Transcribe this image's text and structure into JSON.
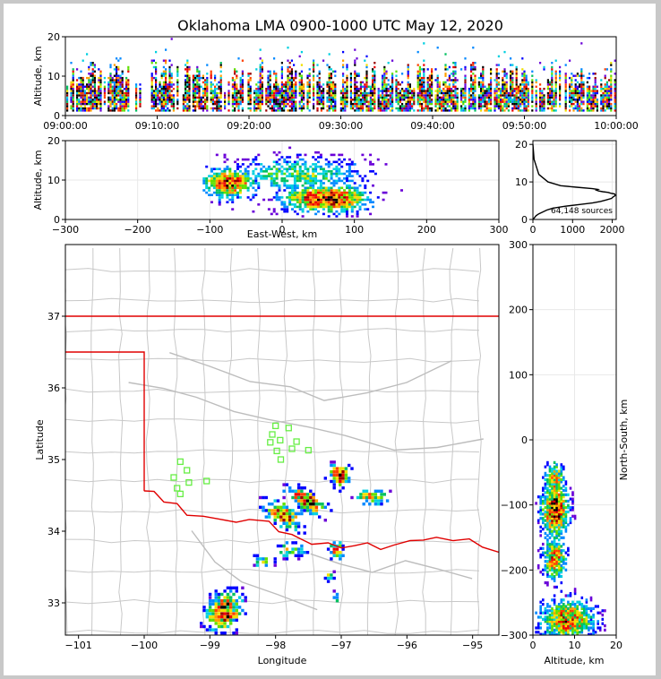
{
  "chart_data": [
    {
      "id": "time_height",
      "type": "heatmap",
      "title": "Oklahoma LMA 0900-1000 UTC May 12, 2020",
      "ylabel": "Altitude, km",
      "xlim": [
        "09:00:00",
        "10:00:00"
      ],
      "ylim": [
        0,
        20
      ],
      "xticks": [
        "09:00:00",
        "09:10:00",
        "09:20:00",
        "09:30:00",
        "09:40:00",
        "09:50:00",
        "10:00:00"
      ],
      "yticks": [
        0,
        10,
        20
      ]
    },
    {
      "id": "ew_height",
      "type": "heatmap",
      "xlabel": "East-West, km",
      "ylabel": "Altitude, km",
      "xlim": [
        -300,
        300
      ],
      "ylim": [
        0,
        20
      ],
      "xticks": [
        -300,
        -200,
        -100,
        0,
        100,
        200,
        300
      ],
      "yticks": [
        0,
        10,
        20
      ]
    },
    {
      "id": "alt_hist",
      "type": "line",
      "annotation": "64,148 sources",
      "xlim": [
        0,
        2100
      ],
      "ylim": [
        0,
        21
      ],
      "xticks": [
        0,
        1000,
        2000
      ],
      "yticks": [
        0,
        10,
        20
      ],
      "x": [
        0,
        40,
        80,
        150,
        250,
        350,
        500,
        800,
        1200,
        1500,
        1700,
        1850,
        1980,
        2020,
        2080,
        2060,
        1960,
        1900,
        1760,
        1660,
        1600,
        1640,
        1500,
        1100,
        700,
        380,
        150,
        30,
        0
      ],
      "y": [
        0,
        0.5,
        1.0,
        1.5,
        2.0,
        2.5,
        3.0,
        3.5,
        4.0,
        4.4,
        4.8,
        5.2,
        5.6,
        6.0,
        6.4,
        6.8,
        7.0,
        7.2,
        7.4,
        7.6,
        7.8,
        8.0,
        8.2,
        8.6,
        9.0,
        10.0,
        12.0,
        16.0,
        20.0
      ]
    },
    {
      "id": "plan_view",
      "type": "heatmap",
      "xlabel": "Longitude",
      "ylabel": "Latitude",
      "xlim": [
        -101.2,
        -94.6
      ],
      "ylim": [
        32.55,
        38.0
      ],
      "xticks": [
        -101,
        -100,
        -99,
        -98,
        -97,
        -96,
        -95
      ],
      "yticks": [
        33,
        34,
        35,
        36,
        37
      ]
    },
    {
      "id": "ns_height",
      "type": "heatmap",
      "xlabel": "Altitude, km",
      "ylabel": "North-South, km",
      "xlim": [
        0,
        20
      ],
      "ylim": [
        -300,
        300
      ],
      "xticks": [
        0,
        10,
        20
      ],
      "yticks": [
        -300,
        -200,
        -100,
        0,
        100,
        200,
        300
      ]
    }
  ],
  "stations": [
    {
      "lon": -99.45,
      "lat": 34.97
    },
    {
      "lon": -99.35,
      "lat": 34.85
    },
    {
      "lon": -99.55,
      "lat": 34.75
    },
    {
      "lon": -99.32,
      "lat": 34.68
    },
    {
      "lon": -99.05,
      "lat": 34.7
    },
    {
      "lon": -99.5,
      "lat": 34.6
    },
    {
      "lon": -99.45,
      "lat": 34.52
    },
    {
      "lon": -98.0,
      "lat": 35.47
    },
    {
      "lon": -97.8,
      "lat": 35.44
    },
    {
      "lon": -98.05,
      "lat": 35.35
    },
    {
      "lon": -98.08,
      "lat": 35.24
    },
    {
      "lon": -97.93,
      "lat": 35.27
    },
    {
      "lon": -97.68,
      "lat": 35.25
    },
    {
      "lon": -97.98,
      "lat": 35.12
    },
    {
      "lon": -97.75,
      "lat": 35.15
    },
    {
      "lon": -97.5,
      "lat": 35.13
    },
    {
      "lon": -97.92,
      "lat": 35.0
    }
  ],
  "colors": {
    "border": "#e00000",
    "county": "#c8c8c8",
    "station": "#66ee44",
    "density": [
      "#6a00d8",
      "#0000ff",
      "#0088ff",
      "#00d0e0",
      "#00c060",
      "#60e000",
      "#f0e000",
      "#ffa000",
      "#ff4000",
      "#ee0000",
      "#990000",
      "#000000"
    ]
  }
}
